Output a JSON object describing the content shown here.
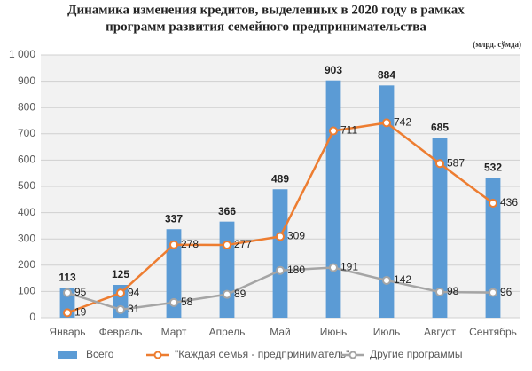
{
  "chart_data": {
    "type": "combo",
    "title": [
      "Динамика изменения кредитов, выделенных в 2020 году в рамках",
      "программ развития семейного предпринимательства"
    ],
    "unit_label": "(млрд. сўмда)",
    "categories": [
      "Январь",
      "Февраль",
      "Март",
      "Апрель",
      "Май",
      "Июнь",
      "Июль",
      "Август",
      "Сентябрь"
    ],
    "series": [
      {
        "name": "Всего",
        "type": "bar",
        "color": "#5b9bd5",
        "values": [
          113,
          125,
          337,
          366,
          489,
          903,
          884,
          685,
          532
        ]
      },
      {
        "name": "\"Каждая семья - предприниматель\"",
        "type": "line",
        "color": "#ed7d31",
        "values": [
          19,
          94,
          278,
          277,
          309,
          711,
          742,
          587,
          436
        ]
      },
      {
        "name": "Другие программы",
        "type": "line",
        "color": "#a5a5a5",
        "values": [
          95,
          31,
          58,
          89,
          180,
          191,
          142,
          98,
          96
        ]
      }
    ],
    "ylim": [
      0,
      1000
    ],
    "yticks": [
      0,
      100,
      200,
      300,
      400,
      500,
      600,
      700,
      800,
      900,
      {
        "value": 1000,
        "label": "1 000"
      }
    ],
    "grid": true,
    "legend": "bottom"
  }
}
